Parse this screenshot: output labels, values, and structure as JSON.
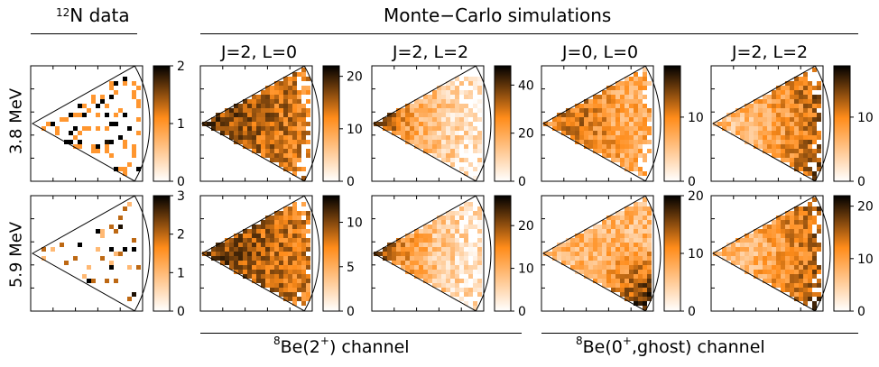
{
  "header": {
    "data_col": {
      "pre": "",
      "sup": "12",
      "post": "N data"
    },
    "sim": "Monte−Carlo simulations"
  },
  "channels": [
    {
      "pre": "",
      "sup": "8",
      "mid": "Be(2",
      "sup2": "+",
      "post": ") channel"
    },
    {
      "pre": "",
      "sup": "8",
      "mid": "Be(0",
      "sup2": "+",
      "post": ",ghost) channel"
    }
  ],
  "rows": [
    "3.8 MeV",
    "5.9 MeV"
  ],
  "columns": [
    "",
    "J=2, L=0",
    "J=2, L=2",
    "J=0, L=0",
    "J=2, L=2"
  ],
  "colors": {
    "low": "#ffffff",
    "mid": "#ff8c1a",
    "high": "#000000",
    "frame": "#000000"
  },
  "chart_data": [
    {
      "type": "heatmap",
      "panel": "12N data, 3.8 MeV",
      "colorbar_ticks": [
        0,
        1,
        2
      ],
      "colorbar_range": [
        0,
        2
      ],
      "data": "sparse"
    },
    {
      "type": "heatmap",
      "panel": "J=2, L=0, 3.8 MeV",
      "colorbar_ticks": [
        0,
        10,
        20
      ],
      "colorbar_range": [
        0,
        22
      ],
      "pattern": "focus-left"
    },
    {
      "type": "heatmap",
      "panel": "J=2, L=2, 3.8 MeV",
      "colorbar_ticks": [
        0,
        20,
        40
      ],
      "colorbar_range": [
        0,
        48
      ],
      "pattern": "focus-left-strong"
    },
    {
      "type": "heatmap",
      "panel": "J=0, L=0, 3.8 MeV",
      "colorbar_ticks": [
        0,
        10
      ],
      "colorbar_range": [
        0,
        18
      ],
      "pattern": "uniform"
    },
    {
      "type": "heatmap",
      "panel": "J=2, L=2, 3.8 MeV",
      "colorbar_ticks": [
        0,
        10
      ],
      "colorbar_range": [
        0,
        18
      ],
      "pattern": "focus-right"
    },
    {
      "type": "heatmap",
      "panel": "12N data, 5.9 MeV",
      "colorbar_ticks": [
        0,
        1,
        2,
        3
      ],
      "colorbar_range": [
        0,
        3
      ],
      "data": "sparse"
    },
    {
      "type": "heatmap",
      "panel": "J=2, L=0, 5.9 MeV",
      "colorbar_ticks": [
        0,
        5,
        10
      ],
      "colorbar_range": [
        0,
        13
      ],
      "pattern": "focus-left"
    },
    {
      "type": "heatmap",
      "panel": "J=2, L=2, 5.9 MeV",
      "colorbar_ticks": [
        0,
        10,
        20
      ],
      "colorbar_range": [
        0,
        27
      ],
      "pattern": "focus-left-strong"
    },
    {
      "type": "heatmap",
      "panel": "J=0, L=0, 5.9 MeV",
      "colorbar_ticks": [
        0,
        10,
        20
      ],
      "colorbar_range": [
        0,
        20
      ],
      "pattern": "focus-bottom-right"
    },
    {
      "type": "heatmap",
      "panel": "J=2, L=2, 5.9 MeV",
      "colorbar_ticks": [
        0,
        10,
        20
      ],
      "colorbar_range": [
        0,
        22
      ],
      "pattern": "focus-right"
    }
  ]
}
